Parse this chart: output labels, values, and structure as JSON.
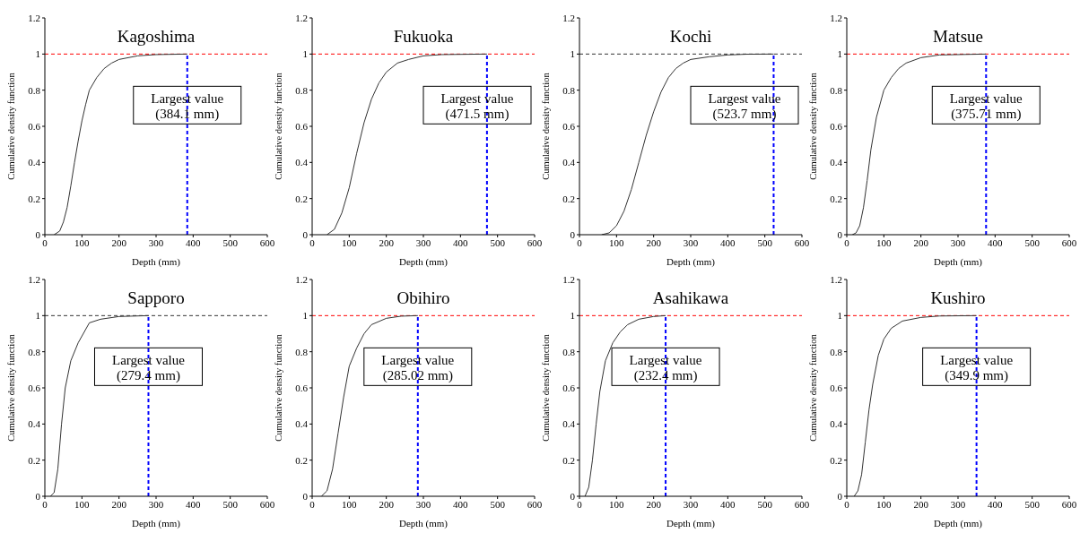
{
  "chart_data": [
    {
      "type": "line",
      "title": "Kagoshima",
      "xlabel": "Depth (mm)",
      "ylabel": "Cumulative density function",
      "xlim": [
        0,
        600
      ],
      "xticks": [
        0,
        100,
        200,
        300,
        400,
        500,
        600
      ],
      "ylim": [
        0,
        1.2
      ],
      "yticks": [
        0,
        0.2,
        0.4,
        0.6,
        0.8,
        1,
        1.2
      ],
      "series": [
        {
          "color": "#333333",
          "x": [
            25,
            40,
            50,
            60,
            70,
            80,
            90,
            100,
            110,
            120,
            140,
            160,
            180,
            200,
            250,
            300,
            384.1
          ],
          "values": [
            0,
            0.02,
            0.07,
            0.15,
            0.27,
            0.4,
            0.52,
            0.63,
            0.72,
            0.8,
            0.87,
            0.92,
            0.95,
            0.97,
            0.99,
            0.997,
            1
          ]
        }
      ],
      "ref_lines": [
        {
          "axis": "y",
          "value": 1,
          "color": "#ff0000",
          "line_style": "dashed"
        },
        {
          "axis": "x",
          "value": 384.1,
          "label": "Largest value\n(384.1 mm)",
          "color": "#0000ff",
          "line_style": "dashed"
        }
      ]
    },
    {
      "type": "line",
      "title": "Fukuoka",
      "xlabel": "Depth (mm)",
      "ylabel": "Cumulative density function",
      "xlim": [
        0,
        600
      ],
      "xticks": [
        0,
        100,
        200,
        300,
        400,
        500,
        600
      ],
      "ylim": [
        0,
        1.2
      ],
      "yticks": [
        0,
        0.2,
        0.4,
        0.6,
        0.8,
        1,
        1.2
      ],
      "series": [
        {
          "color": "#333333",
          "x": [
            40,
            60,
            80,
            100,
            120,
            140,
            160,
            180,
            200,
            230,
            260,
            300,
            350,
            471.5
          ],
          "values": [
            0,
            0.03,
            0.12,
            0.26,
            0.45,
            0.62,
            0.75,
            0.84,
            0.9,
            0.95,
            0.97,
            0.99,
            0.997,
            1
          ]
        }
      ],
      "ref_lines": [
        {
          "axis": "y",
          "value": 1,
          "color": "#ff0000",
          "line_style": "dashed"
        },
        {
          "axis": "x",
          "value": 471.5,
          "label": "Largest value\n(471.5 mm)",
          "color": "#0000ff",
          "line_style": "dashed"
        }
      ]
    },
    {
      "type": "line",
      "title": "Kochi",
      "xlabel": "Depth (mm)",
      "ylabel": "Cumulative density function",
      "xlim": [
        0,
        600
      ],
      "xticks": [
        0,
        100,
        200,
        300,
        400,
        500,
        600
      ],
      "ylim": [
        0,
        1.2
      ],
      "yticks": [
        0,
        0.2,
        0.4,
        0.6,
        0.8,
        1,
        1.2
      ],
      "series": [
        {
          "color": "#333333",
          "x": [
            60,
            80,
            100,
            120,
            140,
            160,
            180,
            200,
            220,
            240,
            260,
            280,
            300,
            350,
            400,
            450,
            523.7
          ],
          "values": [
            0,
            0.01,
            0.05,
            0.13,
            0.25,
            0.4,
            0.55,
            0.68,
            0.79,
            0.87,
            0.92,
            0.95,
            0.97,
            0.985,
            0.995,
            0.999,
            1
          ]
        }
      ],
      "ref_lines": [
        {
          "axis": "y",
          "value": 1,
          "color": "#333333",
          "line_style": "dashed"
        },
        {
          "axis": "x",
          "value": 523.7,
          "label": "Largest value\n(523.7 mm)",
          "color": "#0000ff",
          "line_style": "dashed"
        }
      ]
    },
    {
      "type": "line",
      "title": "Matsue",
      "xlabel": "Depth (mm)",
      "ylabel": "Cumulative density function",
      "xlim": [
        0,
        600
      ],
      "xticks": [
        0,
        100,
        200,
        300,
        400,
        500,
        600
      ],
      "ylim": [
        0,
        1.2
      ],
      "yticks": [
        0,
        0.2,
        0.4,
        0.6,
        0.8,
        1,
        1.2
      ],
      "series": [
        {
          "color": "#333333",
          "x": [
            15,
            25,
            35,
            45,
            55,
            65,
            80,
            100,
            120,
            140,
            160,
            200,
            250,
            375.71
          ],
          "values": [
            0,
            0.01,
            0.05,
            0.15,
            0.3,
            0.47,
            0.65,
            0.8,
            0.87,
            0.92,
            0.95,
            0.98,
            0.995,
            1
          ]
        }
      ],
      "ref_lines": [
        {
          "axis": "y",
          "value": 1,
          "color": "#ff0000",
          "line_style": "dashed"
        },
        {
          "axis": "x",
          "value": 375.71,
          "label": "Largest value\n(375.71 mm)",
          "color": "#0000ff",
          "line_style": "dashed"
        }
      ]
    },
    {
      "type": "line",
      "title": "Sapporo",
      "xlabel": "Depth (mm)",
      "ylabel": "Cumulative density function",
      "xlim": [
        0,
        600
      ],
      "xticks": [
        0,
        100,
        200,
        300,
        400,
        500,
        600
      ],
      "ylim": [
        0,
        1.2
      ],
      "yticks": [
        0,
        0.2,
        0.4,
        0.6,
        0.8,
        1,
        1.2
      ],
      "series": [
        {
          "color": "#333333",
          "x": [
            15,
            25,
            35,
            45,
            55,
            70,
            90,
            120,
            150,
            200,
            279.4
          ],
          "values": [
            0,
            0.02,
            0.15,
            0.4,
            0.6,
            0.75,
            0.85,
            0.96,
            0.98,
            0.995,
            1
          ]
        }
      ],
      "ref_lines": [
        {
          "axis": "y",
          "value": 1,
          "color": "#333333",
          "line_style": "dashed"
        },
        {
          "axis": "x",
          "value": 279.4,
          "label": "Largest value\n(279.4 mm)",
          "color": "#0000ff",
          "line_style": "dashed"
        }
      ]
    },
    {
      "type": "line",
      "title": "Obihiro",
      "xlabel": "Depth (mm)",
      "ylabel": "Cumulative density function",
      "xlim": [
        0,
        600
      ],
      "xticks": [
        0,
        100,
        200,
        300,
        400,
        500,
        600
      ],
      "ylim": [
        0,
        1.2
      ],
      "yticks": [
        0,
        0.2,
        0.4,
        0.6,
        0.8,
        1,
        1.2
      ],
      "series": [
        {
          "color": "#333333",
          "x": [
            25,
            40,
            55,
            70,
            85,
            100,
            120,
            140,
            160,
            200,
            240,
            285.02
          ],
          "values": [
            0,
            0.03,
            0.15,
            0.35,
            0.55,
            0.72,
            0.82,
            0.9,
            0.95,
            0.985,
            0.997,
            1
          ]
        }
      ],
      "ref_lines": [
        {
          "axis": "y",
          "value": 1,
          "color": "#ff0000",
          "line_style": "dashed"
        },
        {
          "axis": "x",
          "value": 285.02,
          "label": "Largest value\n(285.02 mm)",
          "color": "#0000ff",
          "line_style": "dashed"
        }
      ]
    },
    {
      "type": "line",
      "title": "Asahikawa",
      "xlabel": "Depth (mm)",
      "ylabel": "Cumulative density function",
      "xlim": [
        0,
        600
      ],
      "xticks": [
        0,
        100,
        200,
        300,
        400,
        500,
        600
      ],
      "ylim": [
        0,
        1.2
      ],
      "yticks": [
        0,
        0.2,
        0.4,
        0.6,
        0.8,
        1,
        1.2
      ],
      "series": [
        {
          "color": "#333333",
          "x": [
            15,
            25,
            35,
            45,
            55,
            70,
            90,
            110,
            130,
            160,
            200,
            232.4
          ],
          "values": [
            0,
            0.05,
            0.2,
            0.4,
            0.58,
            0.75,
            0.85,
            0.91,
            0.95,
            0.98,
            0.995,
            1
          ]
        }
      ],
      "ref_lines": [
        {
          "axis": "y",
          "value": 1,
          "color": "#ff0000",
          "line_style": "dashed"
        },
        {
          "axis": "x",
          "value": 232.4,
          "label": "Largest value\n(232.4 mm)",
          "color": "#0000ff",
          "line_style": "dashed"
        }
      ]
    },
    {
      "type": "line",
      "title": "Kushiro",
      "xlabel": "Depth (mm)",
      "ylabel": "Cumulative density function",
      "xlim": [
        0,
        600
      ],
      "xticks": [
        0,
        100,
        200,
        300,
        400,
        500,
        600
      ],
      "ylim": [
        0,
        1.2
      ],
      "yticks": [
        0,
        0.2,
        0.4,
        0.6,
        0.8,
        1,
        1.2
      ],
      "series": [
        {
          "color": "#333333",
          "x": [
            20,
            30,
            40,
            50,
            60,
            70,
            85,
            100,
            120,
            150,
            200,
            250,
            349.9
          ],
          "values": [
            0,
            0.03,
            0.12,
            0.3,
            0.48,
            0.62,
            0.78,
            0.87,
            0.93,
            0.97,
            0.99,
            0.998,
            1
          ]
        }
      ],
      "ref_lines": [
        {
          "axis": "y",
          "value": 1,
          "color": "#ff0000",
          "line_style": "dashed"
        },
        {
          "axis": "x",
          "value": 349.9,
          "label": "Largest value\n(349.9 mm)",
          "color": "#0000ff",
          "line_style": "dashed"
        }
      ]
    }
  ]
}
